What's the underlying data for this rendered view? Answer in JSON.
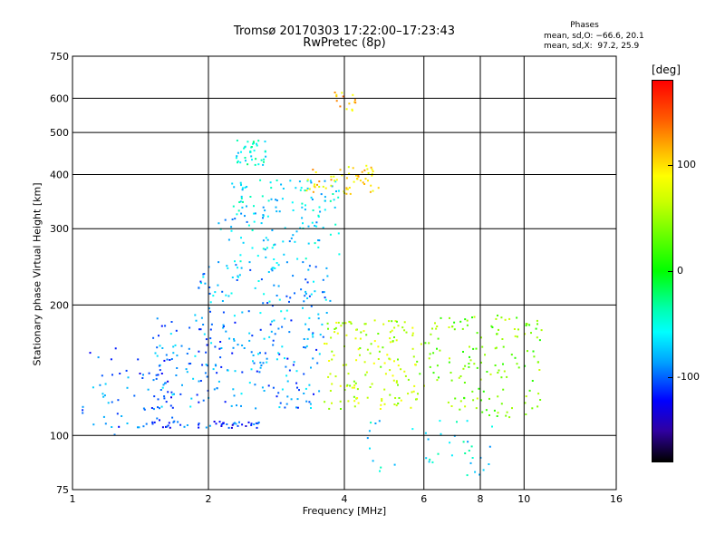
{
  "chart_data": {
    "type": "scatter",
    "title": "Tromsø 20170303 17:22:00–17:23:43",
    "subtitle": "RwPretec (8p)",
    "xlabel": "Frequency [MHz]",
    "ylabel": "Stationary phase Virtual Height [km]",
    "x_scale": "log",
    "y_scale": "log",
    "xlim": [
      1,
      16
    ],
    "ylim": [
      75,
      750
    ],
    "x_ticks": [
      1,
      2,
      4,
      6,
      8,
      10,
      16
    ],
    "y_ticks": [
      75,
      100,
      200,
      300,
      400,
      500,
      600,
      750
    ],
    "grid": true,
    "phase_legend": {
      "title": "Phases",
      "line1": "mean, sd,O: −66.6, 20.1",
      "line2": "mean, sd,X:  97.2, 25.9"
    },
    "colorbar": {
      "unit": "[deg]",
      "ticks": [
        100,
        0,
        -100
      ]
    },
    "clusters": [
      {
        "x_range": [
          1.05,
          1.7
        ],
        "y_range": [
          100,
          160
        ],
        "phase": -100,
        "note_points": 60
      },
      {
        "x_range": [
          1.4,
          2.6
        ],
        "y_range": [
          104,
          108
        ],
        "phase": -110,
        "note_points": 50
      },
      {
        "x_range": [
          1.5,
          3.6
        ],
        "y_range": [
          115,
          190
        ],
        "phase": -90,
        "note_points": 220
      },
      {
        "x_range": [
          1.9,
          3.8
        ],
        "y_range": [
          190,
          250
        ],
        "phase": -80,
        "note_points": 90
      },
      {
        "x_range": [
          2.1,
          3.9
        ],
        "y_range": [
          250,
          330
        ],
        "phase": -70,
        "note_points": 80
      },
      {
        "x_range": [
          2.2,
          3.9
        ],
        "y_range": [
          330,
          390
        ],
        "phase": -60,
        "note_points": 70
      },
      {
        "x_range": [
          2.3,
          2.7
        ],
        "y_range": [
          420,
          480
        ],
        "phase": -50,
        "note_points": 40
      },
      {
        "x_range": [
          3.3,
          4.8
        ],
        "y_range": [
          360,
          420
        ],
        "phase": 100,
        "note_points": 60
      },
      {
        "x_range": [
          3.8,
          4.3
        ],
        "y_range": [
          560,
          620
        ],
        "phase": 110,
        "note_points": 15
      },
      {
        "x_range": [
          3.6,
          5.8
        ],
        "y_range": [
          115,
          185
        ],
        "phase": 60,
        "note_points": 150
      },
      {
        "x_range": [
          5.8,
          11
        ],
        "y_range": [
          110,
          190
        ],
        "phase": 40,
        "note_points": 150
      },
      {
        "x_range": [
          4.5,
          8.8
        ],
        "y_range": [
          80,
          110
        ],
        "phase": -60,
        "note_points": 40
      }
    ]
  }
}
